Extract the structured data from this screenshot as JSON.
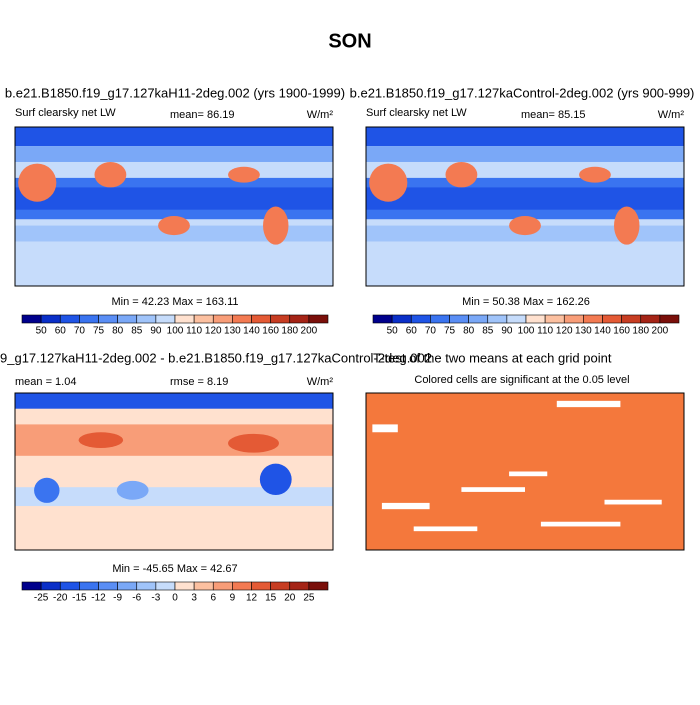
{
  "title": "SON",
  "panels": [
    {
      "header": "b.e21.B1850.f19_g17.127kaH11-2deg.002 (yrs 1900-1999)",
      "variable": "Surf clearsky net LW",
      "mean": "mean=  86.19",
      "units": "W/m²",
      "minmax": "Min =  42.23 Max = 163.11"
    },
    {
      "header": "b.e21.B1850.f19_g17.127kaControl-2deg.002 (yrs 900-999)",
      "variable": "Surf clearsky net LW",
      "mean": "mean=  85.15",
      "units": "W/m²",
      "minmax": "Min =  50.38 Max = 162.26"
    },
    {
      "header": "9_g17.127kaH11-2deg.002 - b.e21.B1850.f19_g17.127kaControl-2deg.002",
      "mean": "mean =  1.04",
      "rmse": "rmse =  8.19",
      "units": "W/m²",
      "minmax": "Min = -45.65 Max =  42.67"
    },
    {
      "header": "T-test of the two means at each grid point",
      "note": "Colored cells are significant at the 0.05 level"
    }
  ],
  "colorbars": [
    {
      "labels": [
        50,
        60,
        70,
        75,
        80,
        85,
        90,
        100,
        110,
        120,
        130,
        140,
        160,
        180,
        200
      ],
      "colors": [
        "#00008c",
        "#0a2fc8",
        "#1f54e6",
        "#3a74f0",
        "#5a8ef5",
        "#7aa8f7",
        "#a0c4fa",
        "#c6dcfb",
        "#ffe1cf",
        "#fcc0a0",
        "#f89d78",
        "#f37a52",
        "#e45a35",
        "#c73d22",
        "#a52416",
        "#7a0f0a"
      ]
    },
    {
      "labels": [
        -25,
        -20,
        -15,
        -12,
        -9,
        -6,
        -3,
        0,
        3,
        6,
        9,
        12,
        15,
        20,
        25
      ],
      "colors": [
        "#00008c",
        "#0a2fc8",
        "#1f54e6",
        "#3a74f0",
        "#5a8ef5",
        "#7aa8f7",
        "#a0c4fa",
        "#c6dcfb",
        "#ffe1cf",
        "#fcc0a0",
        "#f89d78",
        "#f37a52",
        "#e45a35",
        "#c73d22",
        "#a52416",
        "#7a0f0a"
      ]
    }
  ]
}
